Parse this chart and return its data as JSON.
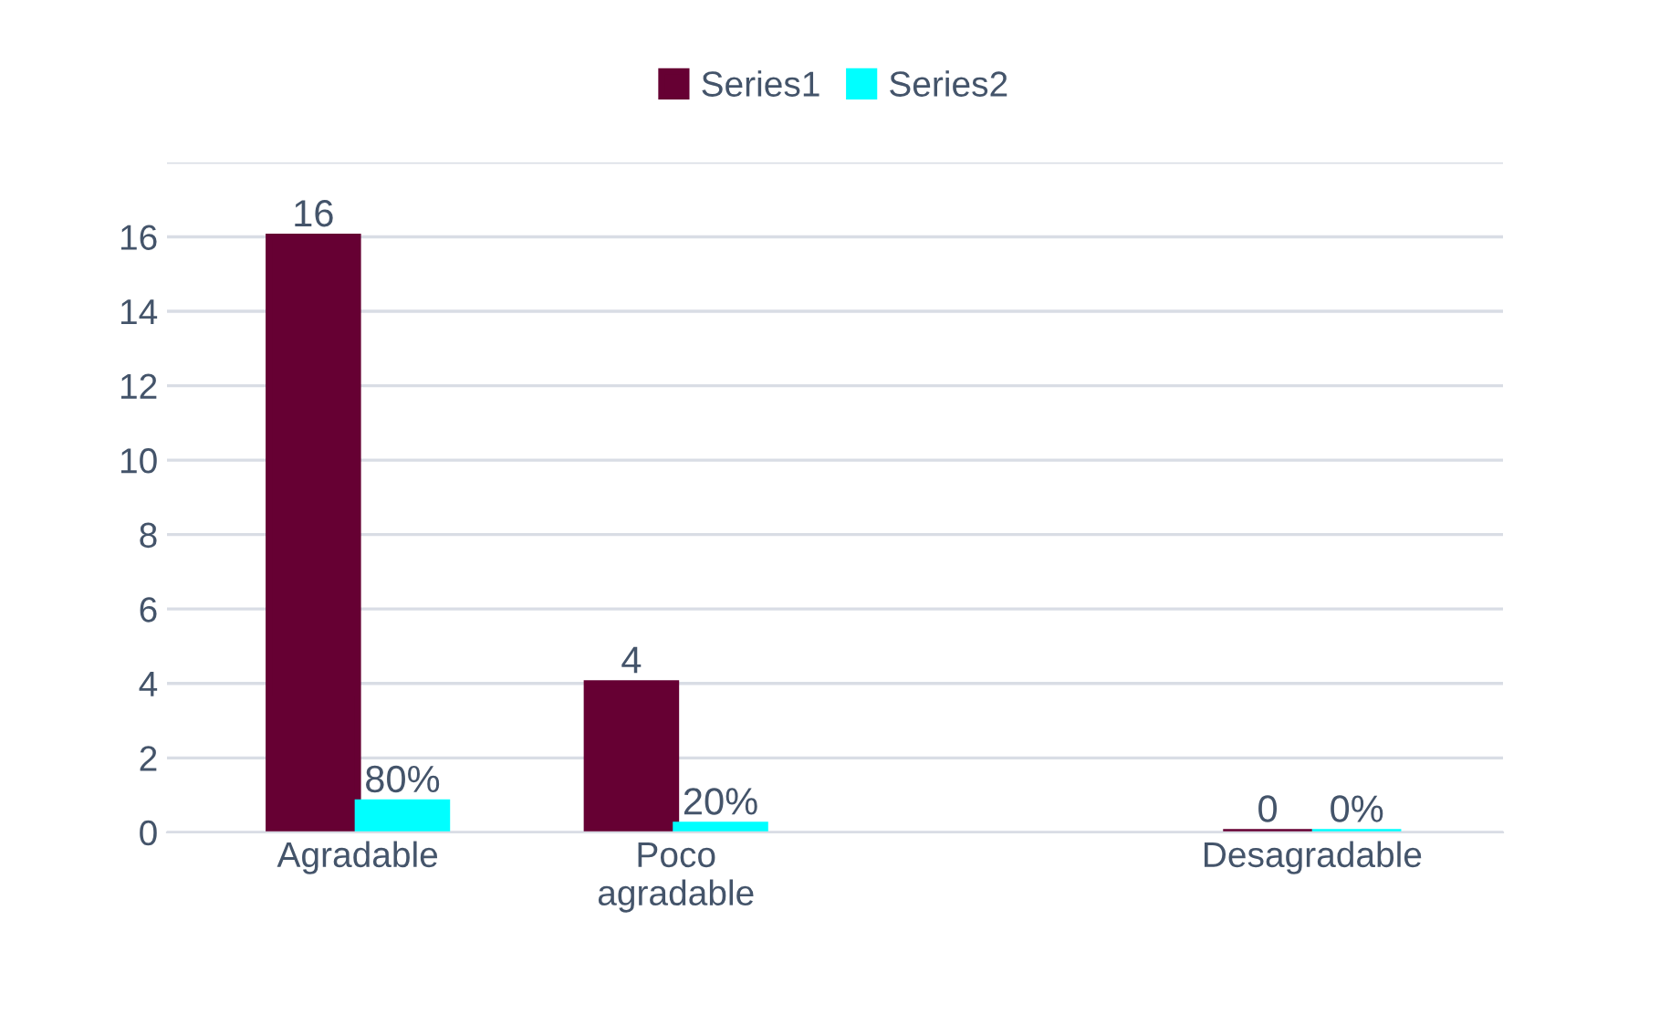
{
  "chart_data": {
    "type": "bar",
    "categories": [
      "Agradable",
      "Poco\nagradable",
      null,
      "Desagradable"
    ],
    "series": [
      {
        "name": "Series1",
        "color": "#660033",
        "values": [
          16,
          4,
          null,
          0
        ],
        "value_labels": [
          "16",
          "4",
          null,
          "0"
        ]
      },
      {
        "name": "Series2",
        "color": "#00ffff",
        "values": [
          0.8,
          0.2,
          null,
          0
        ],
        "value_labels": [
          "80%",
          "20%",
          null,
          "0%"
        ]
      }
    ],
    "ylim": [
      0,
      18
    ],
    "yticks": [
      0,
      2,
      4,
      6,
      8,
      10,
      12,
      14,
      16,
      {
        "value": 18,
        "label": null
      }
    ],
    "grid": "y",
    "legend": "top"
  }
}
